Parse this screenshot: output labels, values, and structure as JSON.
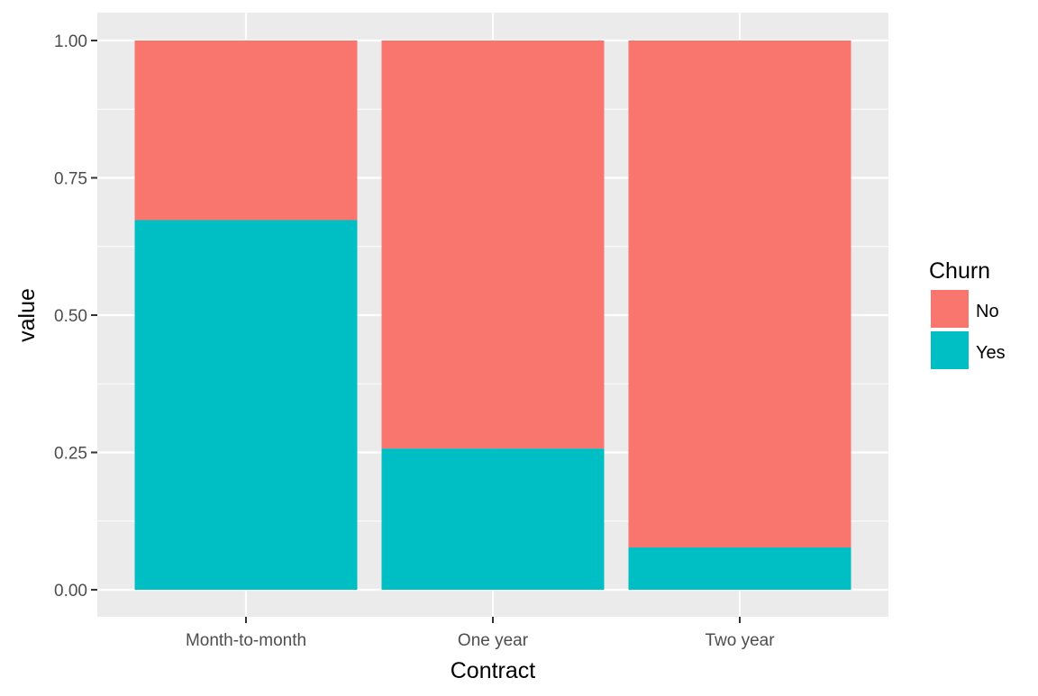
{
  "chart_data": {
    "type": "bar",
    "stacked": true,
    "categories": [
      "Month-to-month",
      "One year",
      "Two year"
    ],
    "series": [
      {
        "name": "No",
        "values": [
          0.327,
          0.743,
          0.923
        ]
      },
      {
        "name": "Yes",
        "values": [
          0.673,
          0.257,
          0.077
        ]
      }
    ],
    "colors": {
      "No": "#F8766D",
      "Yes": "#00BFC4"
    },
    "xlabel": "Contract",
    "ylabel": "value",
    "ylim": [
      0,
      1
    ],
    "yticks": [
      "0.00",
      "0.25",
      "0.50",
      "0.75",
      "1.00"
    ],
    "ytick_values": [
      0,
      0.25,
      0.5,
      0.75,
      1.0
    ],
    "grid": true,
    "legend": {
      "title": "Churn",
      "position": "right",
      "items": [
        "No",
        "Yes"
      ]
    },
    "panel_background": "#EBEBEB",
    "grid_color": "#FFFFFF"
  }
}
